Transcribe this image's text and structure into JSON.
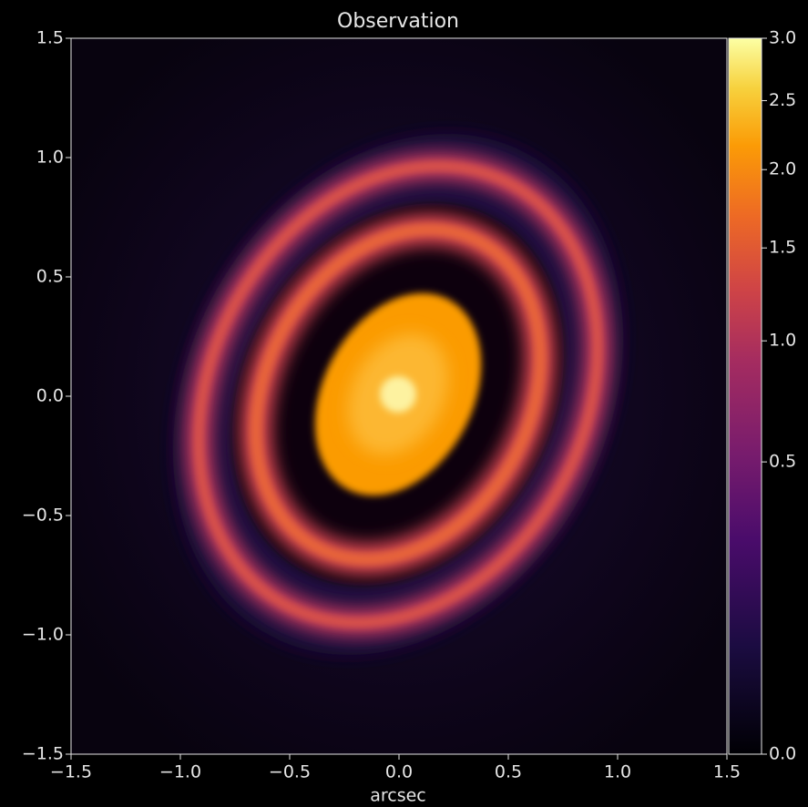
{
  "chart_data": {
    "type": "image",
    "title": "Observation",
    "xlabel": "arcsec",
    "xlim": [
      -1.5,
      1.5
    ],
    "ylim": [
      -1.5,
      1.5
    ],
    "xticks": [
      {
        "value": -1.5,
        "label": "−1.5"
      },
      {
        "value": -1,
        "label": "−1.0"
      },
      {
        "value": -0.5,
        "label": "−0.5"
      },
      {
        "value": 0,
        "label": "0.0"
      },
      0.5,
      {
        "value": 1,
        "label": "1.0"
      },
      1.5
    ],
    "yticks": [
      {
        "value": -1.5,
        "label": "−1.5"
      },
      {
        "value": -1,
        "label": "−1.0"
      },
      {
        "value": -0.5,
        "label": "−0.5"
      },
      {
        "value": 0,
        "label": "0.0"
      },
      0.5,
      {
        "value": 1,
        "label": "1.0"
      },
      1.5
    ],
    "colorbar": {
      "lim": [
        0,
        3
      ],
      "scale": "sqrt",
      "colormap": "inferno",
      "ticks": [
        {
          "value": 0,
          "label": "0.0"
        },
        0.5,
        {
          "value": 1,
          "label": "1.0"
        },
        1.5,
        {
          "value": 2,
          "label": "2.0"
        },
        2.5,
        {
          "value": 3,
          "label": "3.0"
        }
      ]
    }
  }
}
